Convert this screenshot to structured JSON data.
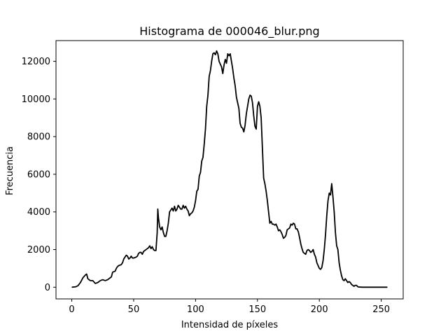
{
  "chart_data": {
    "type": "line",
    "title": "Histograma de 000046_blur.png",
    "xlabel": "Intensidad de píxeles",
    "ylabel": "Frecuencia",
    "xlim": [
      -12.75,
      267.75
    ],
    "ylim": [
      -620,
      13100
    ],
    "xticks": [
      0,
      50,
      100,
      150,
      200,
      250
    ],
    "yticks": [
      0,
      2000,
      4000,
      6000,
      8000,
      10000,
      12000
    ],
    "grid": false,
    "line_color": "#000000",
    "series": [
      {
        "points": [
          [
            0,
            0
          ],
          [
            3,
            20
          ],
          [
            5,
            80
          ],
          [
            7,
            250
          ],
          [
            9,
            500
          ],
          [
            11,
            650
          ],
          [
            12,
            700
          ],
          [
            13,
            450
          ],
          [
            15,
            350
          ],
          [
            17,
            350
          ],
          [
            19,
            200
          ],
          [
            21,
            250
          ],
          [
            23,
            350
          ],
          [
            25,
            400
          ],
          [
            27,
            350
          ],
          [
            29,
            400
          ],
          [
            31,
            500
          ],
          [
            32,
            550
          ],
          [
            33,
            800
          ],
          [
            35,
            850
          ],
          [
            36,
            1000
          ],
          [
            37,
            1100
          ],
          [
            38,
            1150
          ],
          [
            40,
            1200
          ],
          [
            41,
            1300
          ],
          [
            42,
            1500
          ],
          [
            43,
            1600
          ],
          [
            44,
            1700
          ],
          [
            45,
            1650
          ],
          [
            46,
            1500
          ],
          [
            47,
            1550
          ],
          [
            48,
            1650
          ],
          [
            49,
            1550
          ],
          [
            50,
            1550
          ],
          [
            52,
            1600
          ],
          [
            53,
            1650
          ],
          [
            54,
            1800
          ],
          [
            55,
            1850
          ],
          [
            56,
            1850
          ],
          [
            57,
            1750
          ],
          [
            58,
            1900
          ],
          [
            59,
            1950
          ],
          [
            60,
            2000
          ],
          [
            61,
            2050
          ],
          [
            62,
            2100
          ],
          [
            63,
            2200
          ],
          [
            64,
            2050
          ],
          [
            65,
            2150
          ],
          [
            66,
            2000
          ],
          [
            67,
            1950
          ],
          [
            68,
            1950
          ],
          [
            69,
            2900
          ],
          [
            69.5,
            4150
          ],
          [
            70,
            3700
          ],
          [
            71,
            3200
          ],
          [
            72,
            3050
          ],
          [
            73,
            3200
          ],
          [
            74,
            2900
          ],
          [
            75,
            2700
          ],
          [
            76,
            2700
          ],
          [
            77,
            3000
          ],
          [
            78,
            3400
          ],
          [
            79,
            4000
          ],
          [
            80,
            4100
          ],
          [
            81,
            4200
          ],
          [
            82,
            4050
          ],
          [
            83,
            4300
          ],
          [
            84,
            4050
          ],
          [
            85,
            4150
          ],
          [
            86,
            4350
          ],
          [
            87,
            4250
          ],
          [
            88,
            4150
          ],
          [
            89,
            4150
          ],
          [
            90,
            4350
          ],
          [
            91,
            4200
          ],
          [
            92,
            4300
          ],
          [
            93,
            4150
          ],
          [
            94,
            4050
          ],
          [
            95,
            3800
          ],
          [
            96,
            3900
          ],
          [
            97,
            3950
          ],
          [
            98,
            4050
          ],
          [
            99,
            4250
          ],
          [
            100,
            4600
          ],
          [
            101,
            5100
          ],
          [
            102,
            5200
          ],
          [
            103,
            5900
          ],
          [
            104,
            6100
          ],
          [
            105,
            6700
          ],
          [
            106,
            6900
          ],
          [
            107,
            7600
          ],
          [
            108,
            8400
          ],
          [
            109,
            9600
          ],
          [
            110,
            10200
          ],
          [
            111,
            11200
          ],
          [
            112,
            11500
          ],
          [
            113,
            12000
          ],
          [
            114,
            12400
          ],
          [
            115,
            12450
          ],
          [
            116,
            12350
          ],
          [
            117,
            12550
          ],
          [
            118,
            12400
          ],
          [
            119,
            12000
          ],
          [
            120,
            11850
          ],
          [
            121,
            11700
          ],
          [
            122,
            11350
          ],
          [
            123,
            11800
          ],
          [
            124,
            12100
          ],
          [
            125,
            11900
          ],
          [
            126,
            12400
          ],
          [
            127,
            12300
          ],
          [
            128,
            12400
          ],
          [
            129,
            12000
          ],
          [
            130,
            11600
          ],
          [
            131,
            11100
          ],
          [
            132,
            10700
          ],
          [
            133,
            10100
          ],
          [
            134,
            9800
          ],
          [
            135,
            9500
          ],
          [
            136,
            8700
          ],
          [
            137,
            8500
          ],
          [
            138,
            8450
          ],
          [
            139,
            8250
          ],
          [
            140,
            8600
          ],
          [
            141,
            9200
          ],
          [
            142,
            9600
          ],
          [
            143,
            10000
          ],
          [
            144,
            10200
          ],
          [
            145,
            10150
          ],
          [
            146,
            9800
          ],
          [
            147,
            9100
          ],
          [
            148,
            8550
          ],
          [
            149,
            8400
          ],
          [
            150,
            9600
          ],
          [
            151,
            9850
          ],
          [
            152,
            9600
          ],
          [
            153,
            9000
          ],
          [
            154,
            7400
          ],
          [
            155,
            5800
          ],
          [
            156,
            5500
          ],
          [
            157,
            5100
          ],
          [
            158,
            4600
          ],
          [
            159,
            4000
          ],
          [
            160,
            3400
          ],
          [
            161,
            3500
          ],
          [
            162,
            3350
          ],
          [
            163,
            3350
          ],
          [
            164,
            3300
          ],
          [
            165,
            3350
          ],
          [
            166,
            3200
          ],
          [
            167,
            3000
          ],
          [
            168,
            3050
          ],
          [
            169,
            2950
          ],
          [
            170,
            2800
          ],
          [
            171,
            2600
          ],
          [
            172,
            2650
          ],
          [
            173,
            2750
          ],
          [
            174,
            3050
          ],
          [
            175,
            3100
          ],
          [
            176,
            3150
          ],
          [
            177,
            3350
          ],
          [
            178,
            3300
          ],
          [
            179,
            3400
          ],
          [
            180,
            3350
          ],
          [
            181,
            3100
          ],
          [
            182,
            3100
          ],
          [
            183,
            2950
          ],
          [
            184,
            2650
          ],
          [
            185,
            2300
          ],
          [
            186,
            2050
          ],
          [
            187,
            1850
          ],
          [
            188,
            1800
          ],
          [
            189,
            1750
          ],
          [
            190,
            1950
          ],
          [
            191,
            2000
          ],
          [
            192,
            1950
          ],
          [
            193,
            1850
          ],
          [
            194,
            1900
          ],
          [
            195,
            2000
          ],
          [
            196,
            1750
          ],
          [
            197,
            1600
          ],
          [
            198,
            1300
          ],
          [
            199,
            1150
          ],
          [
            200,
            1000
          ],
          [
            201,
            950
          ],
          [
            202,
            1050
          ],
          [
            203,
            1400
          ],
          [
            204,
            2000
          ],
          [
            205,
            2800
          ],
          [
            206,
            3800
          ],
          [
            207,
            4600
          ],
          [
            208,
            5000
          ],
          [
            209,
            4900
          ],
          [
            210,
            5500
          ],
          [
            211,
            4800
          ],
          [
            212,
            4000
          ],
          [
            213,
            2900
          ],
          [
            214,
            2200
          ],
          [
            215,
            2000
          ],
          [
            216,
            1300
          ],
          [
            217,
            900
          ],
          [
            218,
            600
          ],
          [
            219,
            400
          ],
          [
            220,
            350
          ],
          [
            221,
            450
          ],
          [
            222,
            350
          ],
          [
            223,
            250
          ],
          [
            224,
            300
          ],
          [
            225,
            250
          ],
          [
            226,
            150
          ],
          [
            227,
            100
          ],
          [
            228,
            50
          ],
          [
            229,
            100
          ],
          [
            230,
            100
          ],
          [
            231,
            30
          ],
          [
            232,
            10
          ],
          [
            235,
            0
          ],
          [
            240,
            0
          ],
          [
            245,
            0
          ],
          [
            250,
            0
          ],
          [
            255,
            0
          ]
        ]
      }
    ]
  }
}
